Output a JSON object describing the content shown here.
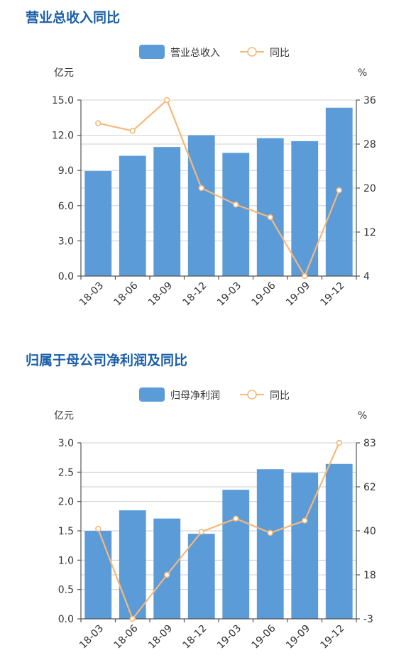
{
  "colors": {
    "bar": "#5b9bd8",
    "line": "#f5b97a",
    "title": "#1a5fa8"
  },
  "chart_data": [
    {
      "type": "bar",
      "title": "营业总收入同比",
      "categories": [
        "18-03",
        "18-06",
        "18-09",
        "18-12",
        "19-03",
        "19-06",
        "19-09",
        "19-12"
      ],
      "series": [
        {
          "name": "营业总收入",
          "type": "bar",
          "axis": "left",
          "values": [
            8.95,
            10.25,
            11.0,
            12.0,
            10.5,
            11.75,
            11.5,
            14.35
          ]
        },
        {
          "name": "同比",
          "type": "line",
          "axis": "right",
          "values": [
            31.8,
            30.4,
            36.0,
            20.0,
            17.0,
            14.7,
            4.0,
            19.6
          ]
        }
      ],
      "ylabel_left": "亿元",
      "ylabel_right": "%",
      "ylim_left": [
        0,
        15
      ],
      "ylim_right": [
        4,
        36
      ],
      "yticks_left": [
        "15.0",
        "12.0",
        "9.0",
        "6.0",
        "3.0",
        "0.0"
      ],
      "yticks_right": [
        "36",
        "28",
        "20",
        "12",
        "4"
      ],
      "legend_position": "top-center",
      "grid": true
    },
    {
      "type": "bar",
      "title": "归属于母公司净利润及同比",
      "categories": [
        "18-03",
        "18-06",
        "18-09",
        "18-12",
        "19-03",
        "19-06",
        "19-09",
        "19-12"
      ],
      "series": [
        {
          "name": "归母净利润",
          "type": "bar",
          "axis": "left",
          "values": [
            1.5,
            1.85,
            1.71,
            1.45,
            2.2,
            2.55,
            2.49,
            2.64
          ]
        },
        {
          "name": "同比",
          "type": "line",
          "axis": "right",
          "values": [
            41,
            -3,
            18.5,
            39.5,
            46,
            39,
            45,
            83
          ]
        }
      ],
      "ylabel_left": "亿元",
      "ylabel_right": "%",
      "ylim_left": [
        0,
        3
      ],
      "ylim_right": [
        -3,
        83
      ],
      "yticks_left": [
        "3.0",
        "2.5",
        "2.0",
        "1.5",
        "1.0",
        "0.5",
        "0.0"
      ],
      "yticks_right": [
        "83",
        "62",
        "40",
        "18",
        "-3"
      ],
      "legend_position": "top-center",
      "grid": true
    }
  ]
}
